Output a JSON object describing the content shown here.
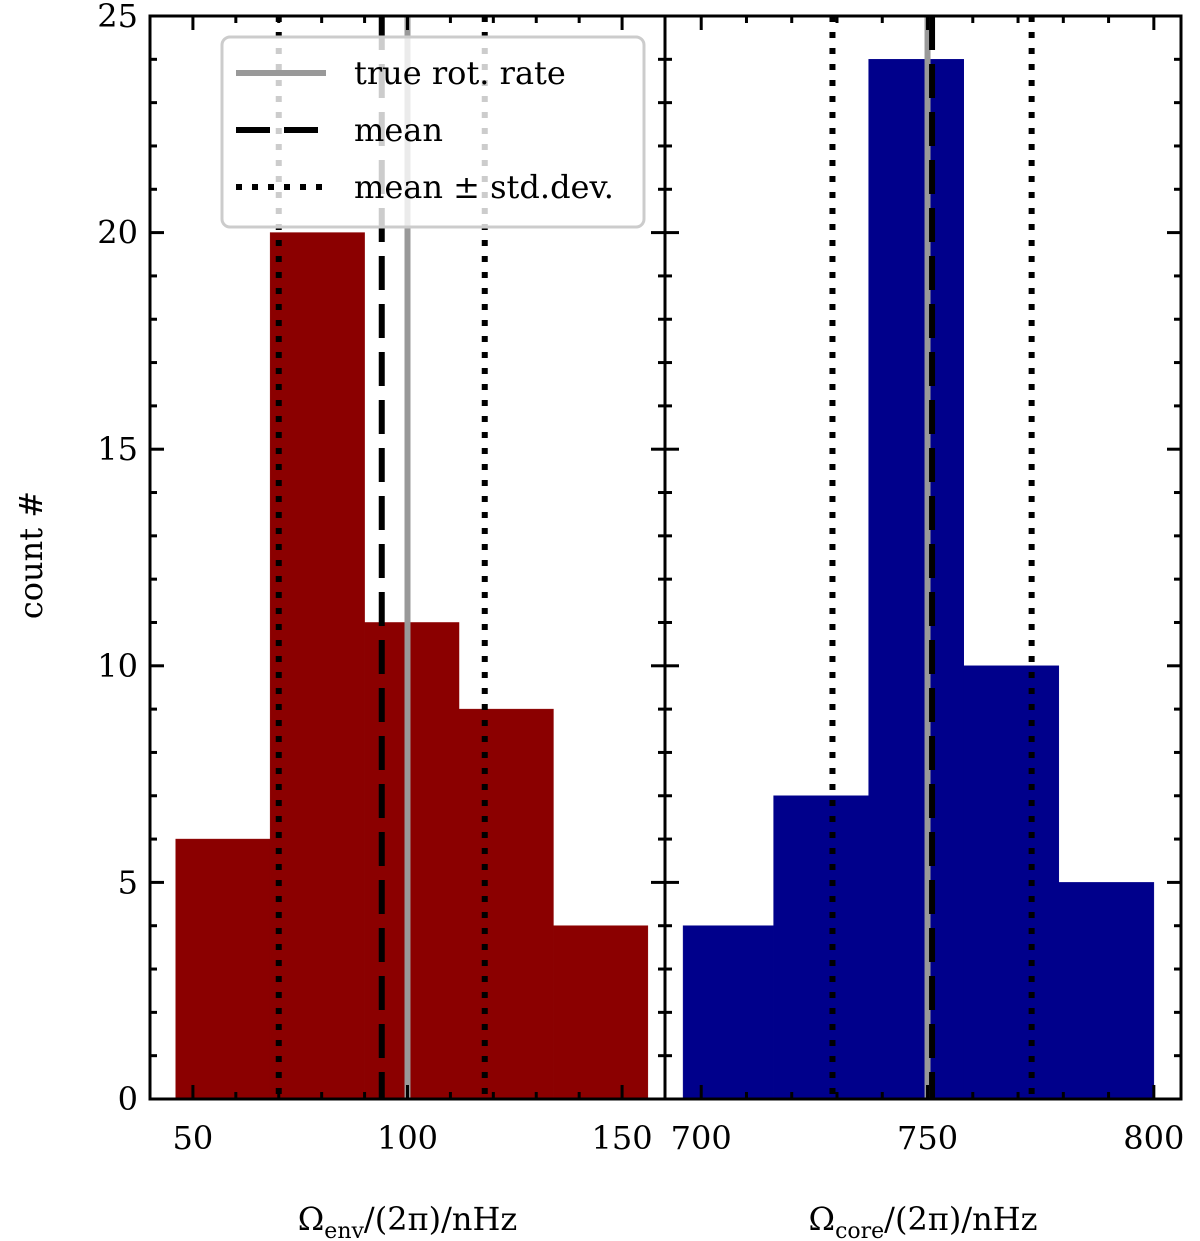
{
  "chart_data": [
    {
      "type": "bar",
      "panel": "left",
      "bar_color": "#8b0000",
      "bin_edges": [
        46,
        68,
        90,
        112,
        134,
        156
      ],
      "values": [
        6,
        20,
        11,
        9,
        4
      ],
      "xlim": [
        40,
        160
      ],
      "ylim": [
        0,
        25
      ],
      "xticks": [
        50,
        100,
        150
      ],
      "yticks": [
        0,
        5,
        10,
        15,
        20,
        25
      ],
      "xlabel": {
        "main": "Ω",
        "sub": "env",
        "rest": "/(2π)/nHz"
      },
      "ylabel": "count #",
      "true_rate": 100,
      "mean": 94,
      "std_low": 70,
      "std_high": 118
    },
    {
      "type": "bar",
      "panel": "right",
      "bar_color": "#00008b",
      "bin_edges": [
        696,
        716,
        737,
        758,
        779,
        800
      ],
      "values": [
        4,
        7,
        24,
        10,
        5
      ],
      "xlim": [
        692,
        806
      ],
      "ylim": [
        0,
        25
      ],
      "xticks": [
        700,
        750,
        800
      ],
      "xlabel": {
        "main": "Ω",
        "sub": "core",
        "rest": "/(2π)/nHz"
      },
      "true_rate": 750,
      "mean": 751,
      "std_low": 729,
      "std_high": 773
    }
  ],
  "legend": {
    "entries": [
      {
        "label": "true rot. rate",
        "style": "solid-gray"
      },
      {
        "label": "mean",
        "style": "dashed-black"
      },
      {
        "label": "mean ± std.dev.",
        "style": "dotted-black"
      }
    ]
  },
  "colors": {
    "true_line": "#999999",
    "mean_line": "#000000",
    "std_line": "#000000"
  }
}
